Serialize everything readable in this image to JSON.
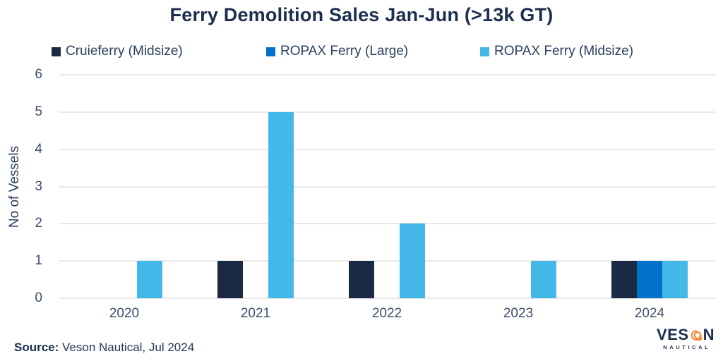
{
  "chart_data": {
    "type": "bar",
    "title": "Ferry Demolition Sales Jan-Jun (>13k GT)",
    "categories": [
      "2020",
      "2021",
      "2022",
      "2023",
      "2024"
    ],
    "series": [
      {
        "name": "Cruieferry (Midsize)",
        "color": "#1A2A44",
        "values": [
          0,
          1,
          1,
          0,
          1
        ]
      },
      {
        "name": "ROPAX Ferry (Large)",
        "color": "#0072C9",
        "values": [
          0,
          0,
          0,
          0,
          1
        ]
      },
      {
        "name": "ROPAX Ferry (Midsize)",
        "color": "#45B8EA",
        "values": [
          1,
          5,
          2,
          1,
          1
        ]
      }
    ],
    "xlabel": "",
    "ylabel": "No of Vessels",
    "ylim": [
      0,
      6
    ],
    "yticks": [
      0,
      1,
      2,
      3,
      4,
      5,
      6
    ],
    "grid": true,
    "grid_color": "#E9E9E9",
    "legend_position": "top",
    "bar_group_layout": "grouped"
  },
  "source": {
    "prefix": "Source:",
    "text": "Veson Nautical, Jul 2024"
  },
  "logo": {
    "text": "VESON",
    "subtext": "NAUTICAL",
    "swirl_icon": "spiral-icon",
    "swirl_color": "#F58025",
    "text_color": "#1B2E4D"
  }
}
